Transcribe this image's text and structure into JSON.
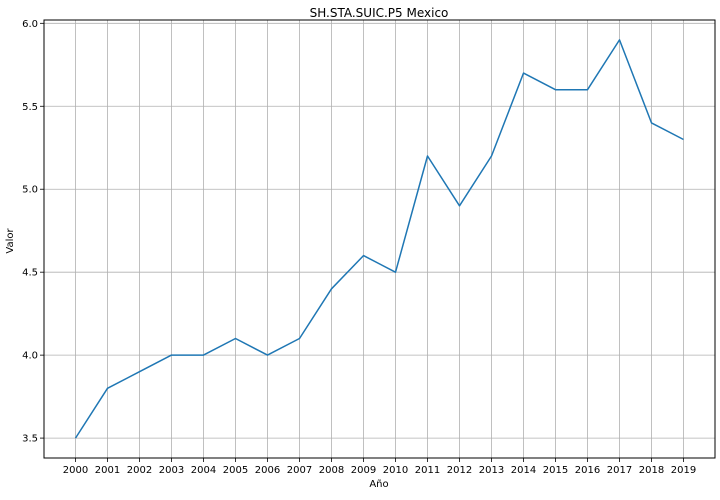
{
  "chart_data": {
    "type": "line",
    "title": "SH.STA.SUIC.P5 Mexico",
    "xlabel": "Año",
    "ylabel": "Valor",
    "x": [
      "2000",
      "2001",
      "2002",
      "2003",
      "2004",
      "2005",
      "2006",
      "2007",
      "2008",
      "2009",
      "2010",
      "2011",
      "2012",
      "2013",
      "2014",
      "2015",
      "2016",
      "2017",
      "2018",
      "2019"
    ],
    "series": [
      {
        "values": [
          3.5,
          3.8,
          3.9,
          4.0,
          4.0,
          4.1,
          4.0,
          4.1,
          4.4,
          4.6,
          4.5,
          5.2,
          4.9,
          5.2,
          5.7,
          5.6,
          5.6,
          5.9,
          5.4,
          5.3
        ]
      }
    ],
    "yticks": [
      "3.5",
      "4.0",
      "4.5",
      "5.0",
      "5.5",
      "6.0"
    ],
    "ylim": [
      3.38,
      6.02
    ],
    "grid": true,
    "line_color": "#1f77b4",
    "grid_color": "#b0b0b0"
  }
}
